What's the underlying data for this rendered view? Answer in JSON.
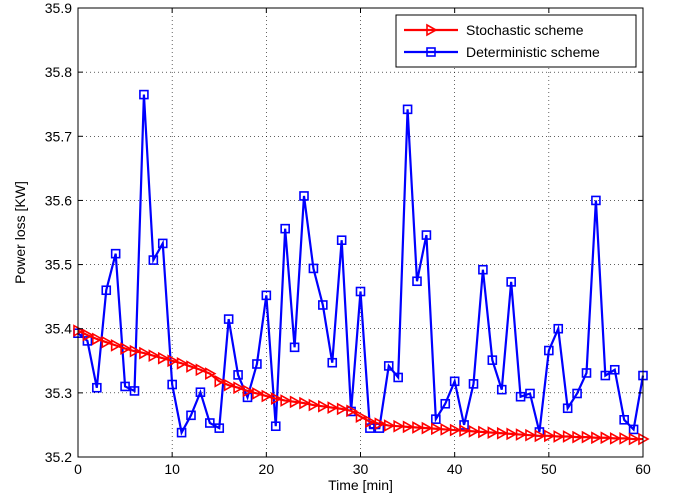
{
  "chart_data": {
    "type": "line",
    "title": "",
    "xlabel": "Time [min]",
    "ylabel": "Power loss [KW]",
    "xlim": [
      0,
      60
    ],
    "ylim": [
      35.2,
      35.9
    ],
    "xticks": [
      0,
      10,
      20,
      30,
      40,
      50,
      60
    ],
    "yticks": [
      35.2,
      35.3,
      35.4,
      35.5,
      35.6,
      35.7,
      35.8,
      35.9
    ],
    "xtick_labels": [
      "0",
      "10",
      "20",
      "30",
      "40",
      "50",
      "60"
    ],
    "ytick_labels": [
      "35.2",
      "35.3",
      "35.4",
      "35.5",
      "35.6",
      "35.7",
      "35.8",
      "35.9"
    ],
    "grid": true,
    "legend_position": "top-right",
    "x": [
      0,
      1,
      2,
      3,
      4,
      5,
      6,
      7,
      8,
      9,
      10,
      11,
      12,
      13,
      14,
      15,
      16,
      17,
      18,
      19,
      20,
      21,
      22,
      23,
      24,
      25,
      26,
      27,
      28,
      29,
      30,
      31,
      32,
      33,
      34,
      35,
      36,
      37,
      38,
      39,
      40,
      41,
      42,
      43,
      44,
      45,
      46,
      47,
      48,
      49,
      50,
      51,
      52,
      53,
      54,
      55,
      56,
      57,
      58,
      59,
      60
    ],
    "series": [
      {
        "name": "Stochastic scheme",
        "color": "#ff0000",
        "marker": "triangle-right",
        "values": [
          35.397,
          35.39,
          35.384,
          35.379,
          35.374,
          35.369,
          35.365,
          35.362,
          35.358,
          35.354,
          35.35,
          35.346,
          35.341,
          35.336,
          35.33,
          35.318,
          35.312,
          35.308,
          35.303,
          35.299,
          35.295,
          35.291,
          35.288,
          35.286,
          35.284,
          35.281,
          35.279,
          35.277,
          35.275,
          35.272,
          35.263,
          35.255,
          35.252,
          35.249,
          35.248,
          35.247,
          35.246,
          35.245,
          35.244,
          35.243,
          35.242,
          35.241,
          35.24,
          35.239,
          35.238,
          35.237,
          35.236,
          35.235,
          35.234,
          35.233,
          35.233,
          35.232,
          35.232,
          35.231,
          35.231,
          35.23,
          35.23,
          35.229,
          35.229,
          35.228,
          35.228
        ]
      },
      {
        "name": "Deterministic scheme",
        "color": "#0000ff",
        "marker": "square",
        "values": [
          35.393,
          35.381,
          35.308,
          35.46,
          35.517,
          35.31,
          35.303,
          35.765,
          35.507,
          35.533,
          35.313,
          35.238,
          35.265,
          35.301,
          35.253,
          35.245,
          35.415,
          35.328,
          35.293,
          35.345,
          35.452,
          35.248,
          35.556,
          35.371,
          35.607,
          35.494,
          35.437,
          35.347,
          35.538,
          35.271,
          35.458,
          35.245,
          35.245,
          35.342,
          35.324,
          35.742,
          35.474,
          35.546,
          35.259,
          35.283,
          35.318,
          35.25,
          35.314,
          35.492,
          35.351,
          35.305,
          35.473,
          35.294,
          35.299,
          35.239,
          35.366,
          35.4,
          35.276,
          35.299,
          35.331,
          35.6,
          35.327,
          35.336,
          35.258,
          35.243,
          35.327
        ]
      }
    ]
  }
}
